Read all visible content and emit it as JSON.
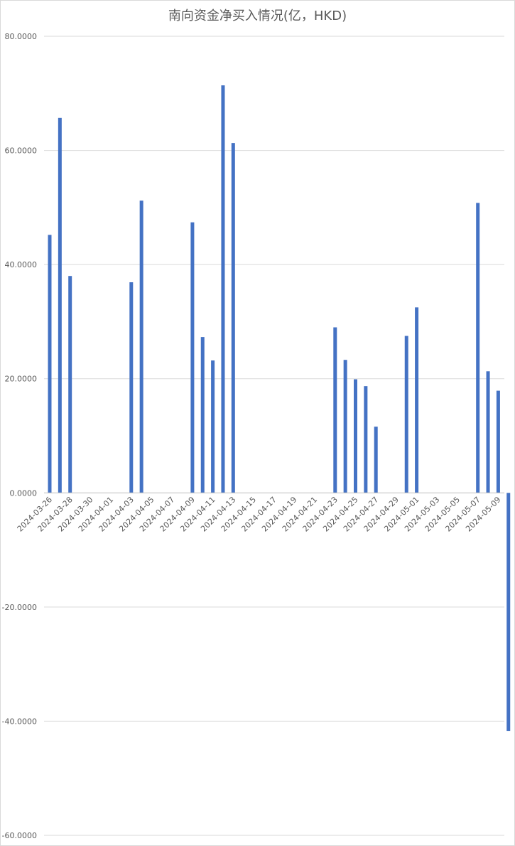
{
  "chart_data": {
    "type": "bar",
    "title": "南向资金净买入情况(亿，HKD)",
    "xlabel": "",
    "ylabel": "",
    "ylim": [
      -60,
      80
    ],
    "y_ticks": [
      "80.0000",
      "60.0000",
      "40.0000",
      "20.0000",
      "0.0000",
      "-20.0000",
      "-40.0000",
      "-60.0000"
    ],
    "y_tick_values": [
      80,
      60,
      40,
      20,
      0,
      -20,
      -40,
      -60
    ],
    "grid": true,
    "legend": "none",
    "bar_color": "#4472c4",
    "x_start": "2024-03-26",
    "x_end": "2024-05-09",
    "x_tick_labels": [
      "2024-03-26",
      "2024-03-28",
      "2024-03-30",
      "2024-04-01",
      "2024-04-03",
      "2024-04-05",
      "2024-04-07",
      "2024-04-09",
      "2024-04-11",
      "2024-04-13",
      "2024-04-15",
      "2024-04-17",
      "2024-04-19",
      "2024-04-21",
      "2024-04-23",
      "2024-04-25",
      "2024-04-27",
      "2024-04-29",
      "2024-05-01",
      "2024-05-03",
      "2024-05-05",
      "2024-05-07",
      "2024-05-09"
    ],
    "series": [
      {
        "points": [
          {
            "x": "2024-03-26",
            "y": 45.2
          },
          {
            "x": "2024-03-27",
            "y": 65.7
          },
          {
            "x": "2024-03-28",
            "y": 38.0
          },
          {
            "x": "2024-04-03",
            "y": 36.9
          },
          {
            "x": "2024-04-04",
            "y": 51.2
          },
          {
            "x": "2024-04-09",
            "y": 47.4
          },
          {
            "x": "2024-04-10",
            "y": 27.3
          },
          {
            "x": "2024-04-11",
            "y": 23.2
          },
          {
            "x": "2024-04-12",
            "y": 71.4
          },
          {
            "x": "2024-04-13",
            "y": 61.3
          },
          {
            "x": "2024-04-23",
            "y": 29.0
          },
          {
            "x": "2024-04-24",
            "y": 23.3
          },
          {
            "x": "2024-04-25",
            "y": 19.9
          },
          {
            "x": "2024-04-26",
            "y": 18.7
          },
          {
            "x": "2024-04-27",
            "y": 11.6
          },
          {
            "x": "2024-04-30",
            "y": 27.5
          },
          {
            "x": "2024-05-01",
            "y": 32.5
          },
          {
            "x": "2024-05-07",
            "y": 50.8
          },
          {
            "x": "2024-05-08",
            "y": 21.3
          },
          {
            "x": "2024-05-09",
            "y": 17.9
          },
          {
            "x": "2024-05-10",
            "y": -41.7
          }
        ]
      }
    ]
  }
}
